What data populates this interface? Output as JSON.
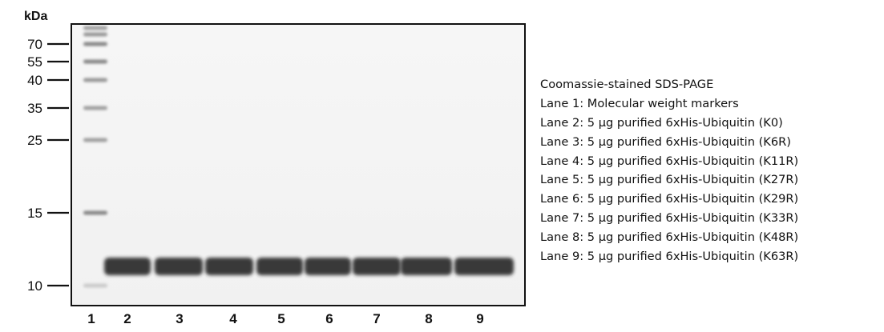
{
  "gel": {
    "unit_label": "kDa",
    "markers": [
      "70",
      "55",
      "40",
      "35",
      "25",
      "15",
      "10"
    ],
    "lanes": [
      "1",
      "2",
      "3",
      "4",
      "5",
      "6",
      "7",
      "8",
      "9"
    ]
  },
  "legend": {
    "title": "Coomassie-stained SDS-PAGE",
    "lines": [
      "Lane 1: Molecular weight markers",
      "Lane 2: 5 µg purified 6xHis-Ubiquitin (K0)",
      "Lane 3: 5 µg purified 6xHis-Ubiquitin (K6R)",
      "Lane 4: 5 µg purified 6xHis-Ubiquitin (K11R)",
      "Lane 5: 5 µg purified 6xHis-Ubiquitin (K27R)",
      "Lane 6: 5 µg purified 6xHis-Ubiquitin (K29R)",
      "Lane 7: 5 µg purified 6xHis-Ubiquitin (K33R)",
      "Lane 8: 5 µg purified 6xHis-Ubiquitin (K48R)",
      "Lane 9: 5 µg purified 6xHis-Ubiquitin (K63R)"
    ]
  }
}
